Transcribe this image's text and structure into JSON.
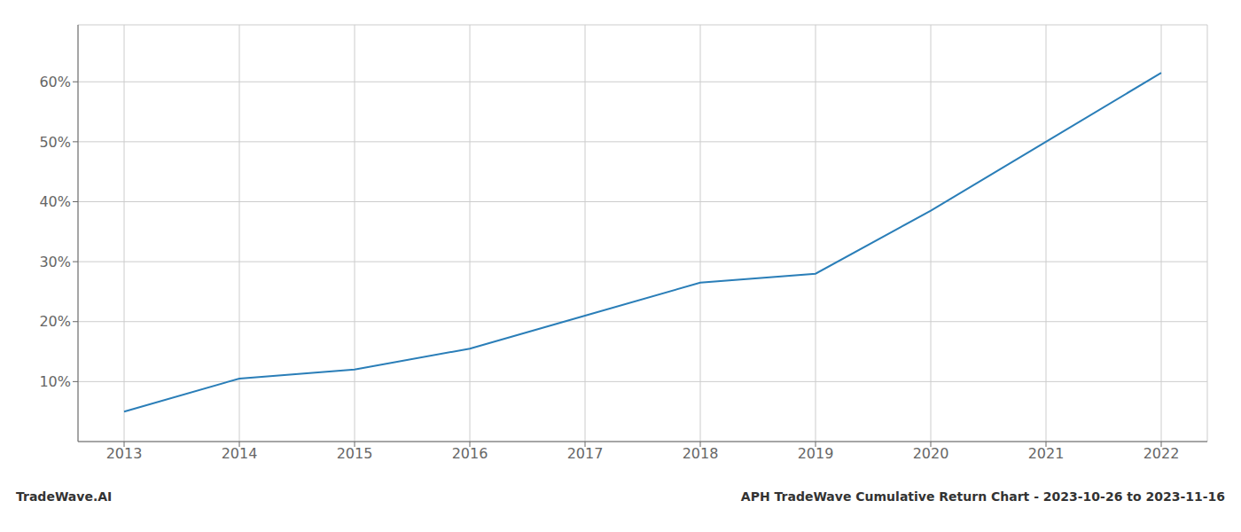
{
  "chart_data": {
    "type": "line",
    "title": "APH TradeWave Cumulative Return Chart - 2023-10-26 to 2023-11-16",
    "annotations": [
      "TradeWave.AI"
    ],
    "x": [
      2013,
      2014,
      2015,
      2016,
      2017,
      2018,
      2019,
      2020,
      2021,
      2022
    ],
    "values": [
      0.05,
      0.105,
      0.12,
      0.155,
      0.21,
      0.265,
      0.28,
      0.385,
      0.5,
      0.615
    ],
    "color": "#2a7eb8",
    "xlim": [
      2012.6,
      2022.4
    ],
    "xticks": [
      2013,
      2014,
      2015,
      2016,
      2017,
      2018,
      2019,
      2020,
      2021,
      2022
    ],
    "ylim": [
      0.0,
      0.695
    ],
    "yticks": [
      {
        "value": 0.1,
        "label": "10%"
      },
      {
        "value": 0.2,
        "label": "20%"
      },
      {
        "value": 0.3,
        "label": "30%"
      },
      {
        "value": 0.4,
        "label": "40%"
      },
      {
        "value": 0.5,
        "label": "50%"
      },
      {
        "value": 0.6,
        "label": "60%"
      }
    ],
    "grid": true
  }
}
